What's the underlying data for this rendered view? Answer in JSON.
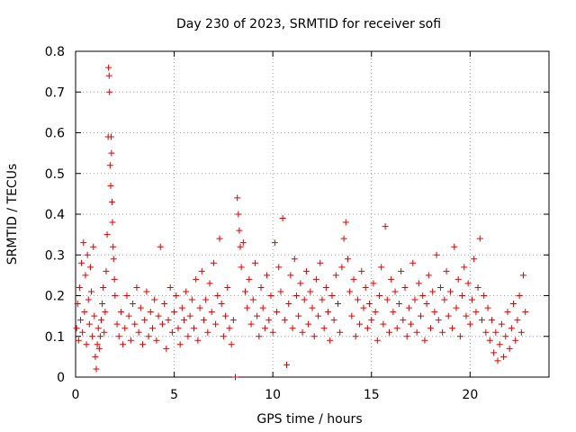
{
  "chart_data": {
    "type": "scatter",
    "title": "Day 230 of 2023, SRMTID for receiver sofi",
    "xlabel": "GPS time / hours",
    "ylabel": "SRMTID / TECUs",
    "xlim": [
      0,
      24
    ],
    "ylim": [
      0,
      0.8
    ],
    "xticks": [
      0,
      5,
      10,
      15,
      20
    ],
    "xtick_labels": [
      "0",
      "5",
      "10",
      "15",
      "20"
    ],
    "yticks": [
      0,
      0.1,
      0.2,
      0.3,
      0.4,
      0.5,
      0.6,
      0.7,
      0.8
    ],
    "ytick_labels": [
      "0",
      "0.1",
      "0.2",
      "0.3",
      "0.4",
      "0.5",
      "0.6",
      "0.7",
      "0.8"
    ],
    "grid": true,
    "marker": "+",
    "color": "#e00000",
    "series": [
      {
        "name": "SRMTID",
        "points": [
          [
            0.05,
            0.12
          ],
          [
            0.1,
            0.18
          ],
          [
            0.15,
            0.09
          ],
          [
            0.2,
            0.22
          ],
          [
            0.25,
            0.14
          ],
          [
            0.3,
            0.28
          ],
          [
            0.35,
            0.11
          ],
          [
            0.4,
            0.33
          ],
          [
            0.45,
            0.16
          ],
          [
            0.5,
            0.25
          ],
          [
            0.55,
            0.08
          ],
          [
            0.6,
            0.3
          ],
          [
            0.65,
            0.19
          ],
          [
            0.7,
            0.13
          ],
          [
            0.75,
            0.27
          ],
          [
            0.8,
            0.21
          ],
          [
            0.85,
            0.1
          ],
          [
            0.9,
            0.32
          ],
          [
            0.95,
            0.15
          ],
          [
            1.0,
            0.05
          ],
          [
            1.05,
            0.02
          ],
          [
            1.1,
            0.08
          ],
          [
            1.15,
            0.12
          ],
          [
            1.2,
            0.07
          ],
          [
            1.25,
            0.1
          ],
          [
            1.3,
            0.14
          ],
          [
            1.35,
            0.18
          ],
          [
            1.4,
            0.22
          ],
          [
            1.45,
            0.11
          ],
          [
            1.5,
            0.16
          ],
          [
            1.55,
            0.26
          ],
          [
            1.6,
            0.35
          ],
          [
            1.65,
            0.59
          ],
          [
            1.67,
            0.76
          ],
          [
            1.7,
            0.74
          ],
          [
            1.72,
            0.7
          ],
          [
            1.75,
            0.52
          ],
          [
            1.78,
            0.47
          ],
          [
            1.8,
            0.59
          ],
          [
            1.82,
            0.55
          ],
          [
            1.85,
            0.43
          ],
          [
            1.87,
            0.38
          ],
          [
            1.9,
            0.32
          ],
          [
            1.93,
            0.29
          ],
          [
            1.97,
            0.24
          ],
          [
            2.0,
            0.2
          ],
          [
            2.1,
            0.13
          ],
          [
            2.2,
            0.1
          ],
          [
            2.3,
            0.16
          ],
          [
            2.4,
            0.08
          ],
          [
            2.5,
            0.12
          ],
          [
            2.6,
            0.2
          ],
          [
            2.7,
            0.15
          ],
          [
            2.8,
            0.09
          ],
          [
            2.9,
            0.18
          ],
          [
            3.0,
            0.13
          ],
          [
            3.1,
            0.22
          ],
          [
            3.2,
            0.11
          ],
          [
            3.3,
            0.17
          ],
          [
            3.4,
            0.08
          ],
          [
            3.5,
            0.14
          ],
          [
            3.6,
            0.21
          ],
          [
            3.7,
            0.1
          ],
          [
            3.8,
            0.16
          ],
          [
            3.9,
            0.12
          ],
          [
            4.0,
            0.19
          ],
          [
            4.1,
            0.09
          ],
          [
            4.2,
            0.15
          ],
          [
            4.3,
            0.32
          ],
          [
            4.4,
            0.13
          ],
          [
            4.5,
            0.18
          ],
          [
            4.6,
            0.07
          ],
          [
            4.7,
            0.14
          ],
          [
            4.8,
            0.22
          ],
          [
            4.9,
            0.11
          ],
          [
            5.0,
            0.16
          ],
          [
            5.1,
            0.2
          ],
          [
            5.2,
            0.12
          ],
          [
            5.3,
            0.08
          ],
          [
            5.4,
            0.17
          ],
          [
            5.5,
            0.14
          ],
          [
            5.6,
            0.21
          ],
          [
            5.7,
            0.1
          ],
          [
            5.8,
            0.15
          ],
          [
            5.9,
            0.19
          ],
          [
            6.0,
            0.12
          ],
          [
            6.1,
            0.24
          ],
          [
            6.2,
            0.09
          ],
          [
            6.3,
            0.17
          ],
          [
            6.4,
            0.26
          ],
          [
            6.5,
            0.14
          ],
          [
            6.6,
            0.19
          ],
          [
            6.7,
            0.11
          ],
          [
            6.8,
            0.23
          ],
          [
            6.9,
            0.16
          ],
          [
            7.0,
            0.28
          ],
          [
            7.1,
            0.13
          ],
          [
            7.2,
            0.2
          ],
          [
            7.3,
            0.34
          ],
          [
            7.4,
            0.18
          ],
          [
            7.5,
            0.1
          ],
          [
            7.6,
            0.15
          ],
          [
            7.7,
            0.22
          ],
          [
            7.8,
            0.12
          ],
          [
            7.9,
            0.08
          ],
          [
            8.0,
            0.14
          ],
          [
            8.1,
            0.0
          ],
          [
            8.2,
            0.44
          ],
          [
            8.25,
            0.4
          ],
          [
            8.3,
            0.36
          ],
          [
            8.35,
            0.32
          ],
          [
            8.4,
            0.27
          ],
          [
            8.5,
            0.33
          ],
          [
            8.6,
            0.21
          ],
          [
            8.7,
            0.17
          ],
          [
            8.8,
            0.24
          ],
          [
            8.9,
            0.13
          ],
          [
            9.0,
            0.19
          ],
          [
            9.1,
            0.28
          ],
          [
            9.2,
            0.15
          ],
          [
            9.3,
            0.1
          ],
          [
            9.4,
            0.22
          ],
          [
            9.5,
            0.17
          ],
          [
            9.6,
            0.12
          ],
          [
            9.7,
            0.25
          ],
          [
            9.8,
            0.14
          ],
          [
            9.9,
            0.2
          ],
          [
            10.0,
            0.11
          ],
          [
            10.1,
            0.33
          ],
          [
            10.2,
            0.16
          ],
          [
            10.3,
            0.27
          ],
          [
            10.4,
            0.21
          ],
          [
            10.5,
            0.39
          ],
          [
            10.6,
            0.14
          ],
          [
            10.7,
            0.03
          ],
          [
            10.8,
            0.18
          ],
          [
            10.9,
            0.25
          ],
          [
            11.0,
            0.12
          ],
          [
            11.1,
            0.29
          ],
          [
            11.2,
            0.2
          ],
          [
            11.3,
            0.15
          ],
          [
            11.4,
            0.23
          ],
          [
            11.5,
            0.11
          ],
          [
            11.6,
            0.19
          ],
          [
            11.7,
            0.26
          ],
          [
            11.8,
            0.13
          ],
          [
            11.9,
            0.21
          ],
          [
            12.0,
            0.17
          ],
          [
            12.1,
            0.1
          ],
          [
            12.2,
            0.24
          ],
          [
            12.3,
            0.15
          ],
          [
            12.4,
            0.28
          ],
          [
            12.5,
            0.19
          ],
          [
            12.6,
            0.12
          ],
          [
            12.7,
            0.22
          ],
          [
            12.8,
            0.16
          ],
          [
            12.9,
            0.09
          ],
          [
            13.0,
            0.2
          ],
          [
            13.1,
            0.14
          ],
          [
            13.2,
            0.25
          ],
          [
            13.3,
            0.18
          ],
          [
            13.4,
            0.11
          ],
          [
            13.5,
            0.27
          ],
          [
            13.6,
            0.34
          ],
          [
            13.7,
            0.38
          ],
          [
            13.8,
            0.29
          ],
          [
            13.9,
            0.21
          ],
          [
            14.0,
            0.15
          ],
          [
            14.1,
            0.24
          ],
          [
            14.2,
            0.1
          ],
          [
            14.3,
            0.19
          ],
          [
            14.4,
            0.13
          ],
          [
            14.5,
            0.26
          ],
          [
            14.6,
            0.17
          ],
          [
            14.7,
            0.22
          ],
          [
            14.8,
            0.12
          ],
          [
            14.9,
            0.18
          ],
          [
            15.0,
            0.14
          ],
          [
            15.1,
            0.23
          ],
          [
            15.2,
            0.16
          ],
          [
            15.3,
            0.09
          ],
          [
            15.4,
            0.2
          ],
          [
            15.5,
            0.27
          ],
          [
            15.6,
            0.13
          ],
          [
            15.7,
            0.37
          ],
          [
            15.8,
            0.19
          ],
          [
            15.9,
            0.11
          ],
          [
            16.0,
            0.24
          ],
          [
            16.1,
            0.16
          ],
          [
            16.2,
            0.21
          ],
          [
            16.3,
            0.12
          ],
          [
            16.4,
            0.18
          ],
          [
            16.5,
            0.26
          ],
          [
            16.6,
            0.14
          ],
          [
            16.7,
            0.22
          ],
          [
            16.8,
            0.1
          ],
          [
            16.9,
            0.17
          ],
          [
            17.0,
            0.13
          ],
          [
            17.1,
            0.28
          ],
          [
            17.2,
            0.19
          ],
          [
            17.3,
            0.11
          ],
          [
            17.4,
            0.23
          ],
          [
            17.5,
            0.15
          ],
          [
            17.6,
            0.2
          ],
          [
            17.7,
            0.09
          ],
          [
            17.8,
            0.18
          ],
          [
            17.9,
            0.25
          ],
          [
            18.0,
            0.12
          ],
          [
            18.1,
            0.21
          ],
          [
            18.2,
            0.16
          ],
          [
            18.3,
            0.3
          ],
          [
            18.4,
            0.14
          ],
          [
            18.5,
            0.22
          ],
          [
            18.6,
            0.11
          ],
          [
            18.7,
            0.19
          ],
          [
            18.8,
            0.26
          ],
          [
            18.9,
            0.15
          ],
          [
            19.0,
            0.21
          ],
          [
            19.1,
            0.12
          ],
          [
            19.2,
            0.32
          ],
          [
            19.3,
            0.17
          ],
          [
            19.4,
            0.24
          ],
          [
            19.5,
            0.1
          ],
          [
            19.6,
            0.2
          ],
          [
            19.7,
            0.27
          ],
          [
            19.8,
            0.15
          ],
          [
            19.9,
            0.23
          ],
          [
            20.0,
            0.13
          ],
          [
            20.1,
            0.19
          ],
          [
            20.2,
            0.29
          ],
          [
            20.3,
            0.16
          ],
          [
            20.4,
            0.22
          ],
          [
            20.5,
            0.34
          ],
          [
            20.6,
            0.14
          ],
          [
            20.7,
            0.2
          ],
          [
            20.8,
            0.11
          ],
          [
            20.9,
            0.17
          ],
          [
            21.0,
            0.09
          ],
          [
            21.1,
            0.14
          ],
          [
            21.2,
            0.06
          ],
          [
            21.3,
            0.11
          ],
          [
            21.4,
            0.04
          ],
          [
            21.5,
            0.08
          ],
          [
            21.6,
            0.13
          ],
          [
            21.7,
            0.05
          ],
          [
            21.8,
            0.1
          ],
          [
            21.9,
            0.16
          ],
          [
            22.0,
            0.07
          ],
          [
            22.1,
            0.12
          ],
          [
            22.2,
            0.18
          ],
          [
            22.3,
            0.09
          ],
          [
            22.4,
            0.14
          ],
          [
            22.5,
            0.2
          ],
          [
            22.6,
            0.11
          ],
          [
            22.7,
            0.25
          ],
          [
            22.8,
            0.16
          ]
        ]
      }
    ]
  }
}
